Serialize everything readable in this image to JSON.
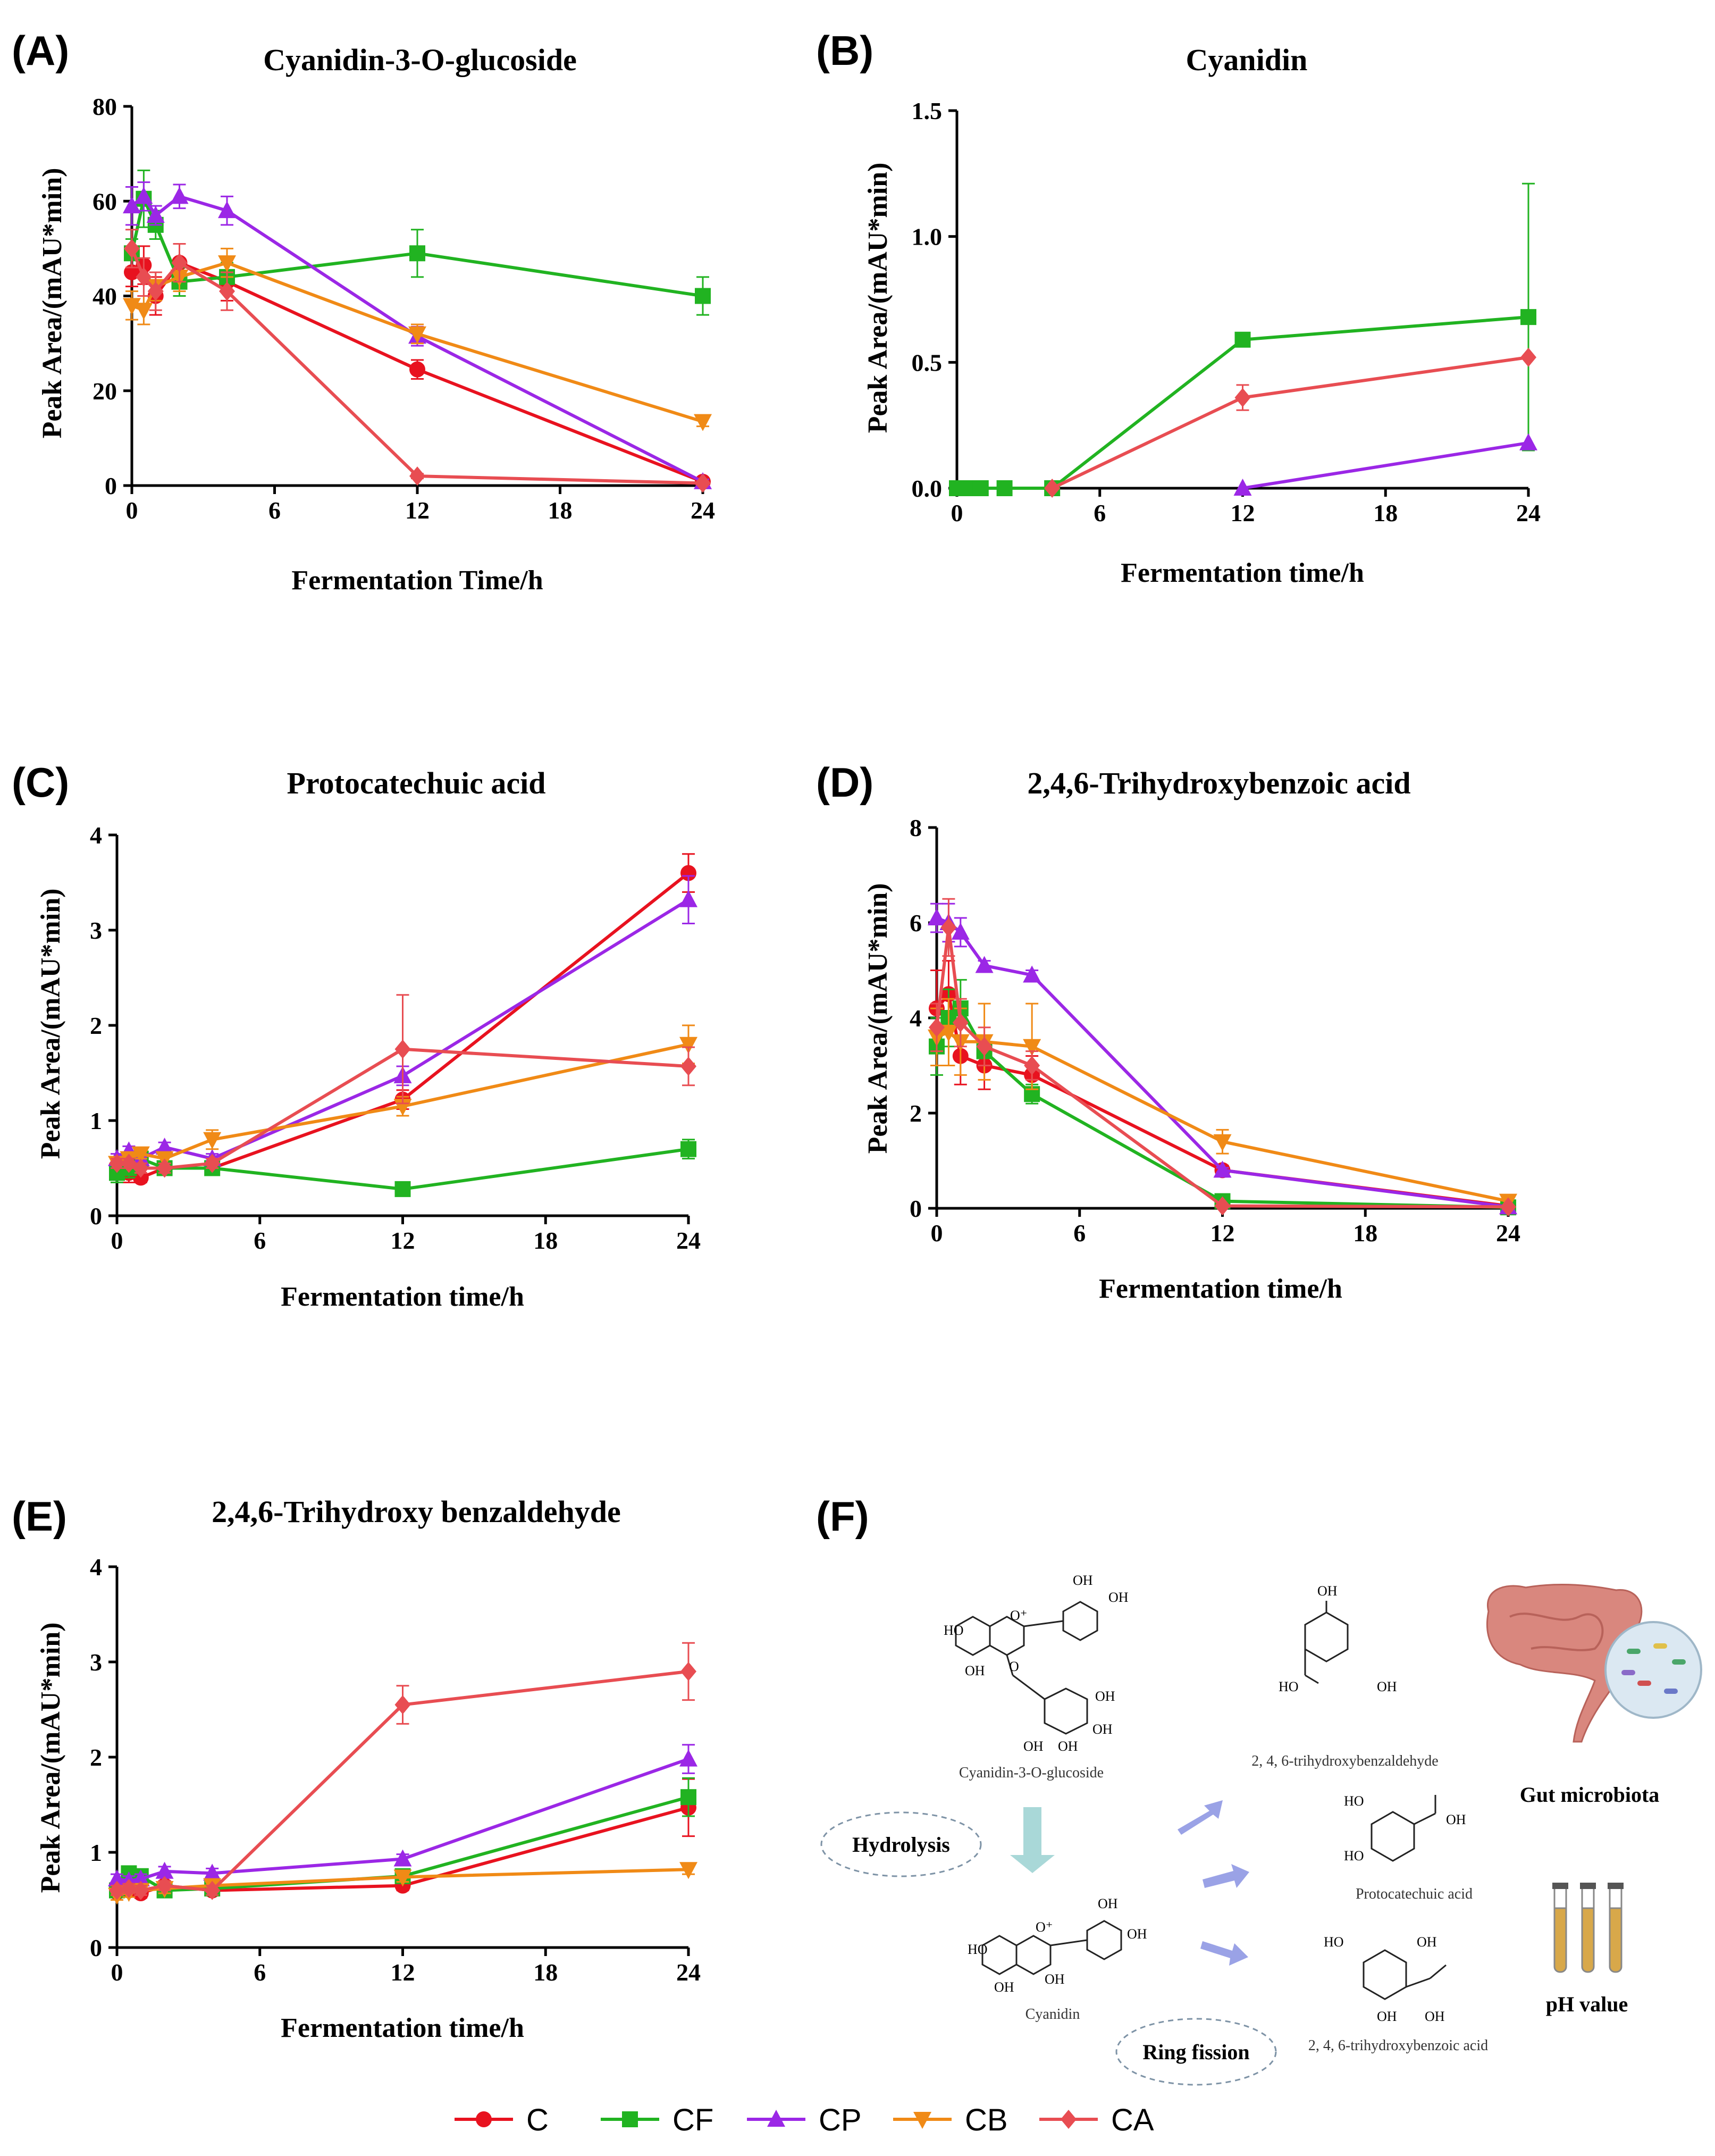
{
  "colors": {
    "C": "#e8121f",
    "CF": "#21b321",
    "CP": "#9b27e6",
    "CB": "#f08a16",
    "CA": "#e84d52"
  },
  "legend": [
    {
      "key": "C",
      "label": "C",
      "marker": "circle"
    },
    {
      "key": "CF",
      "label": "CF",
      "marker": "square"
    },
    {
      "key": "CP",
      "label": "CP",
      "marker": "triangle-up"
    },
    {
      "key": "CB",
      "label": "CB",
      "marker": "triangle-down"
    },
    {
      "key": "CA",
      "label": "CA",
      "marker": "diamond"
    }
  ],
  "chart_data": [
    {
      "panel": "(A)",
      "type": "line",
      "title": "Cyanidin-3-O-glucoside",
      "xlabel": "Fermentation Time/h",
      "ylabel": "Peak Area/(mAU*min)",
      "xlim": [
        0,
        24
      ],
      "ylim": [
        0,
        80
      ],
      "xticks": [
        {
          "v": 0,
          "label": "0"
        },
        {
          "v": 6,
          "label": "6"
        },
        {
          "v": 12,
          "label": "12"
        },
        {
          "v": 18,
          "label": "18"
        },
        {
          "v": 24,
          "label": "24"
        }
      ],
      "yticks": [
        {
          "v": 0,
          "label": "0"
        },
        {
          "v": 20,
          "label": "20"
        },
        {
          "v": 40,
          "label": "40"
        },
        {
          "v": 60,
          "label": "60"
        },
        {
          "v": 80,
          "label": "80"
        }
      ],
      "series": [
        {
          "name": "C",
          "x": [
            0,
            0.5,
            1,
            2,
            4,
            12,
            24
          ],
          "y": [
            45,
            46.5,
            40,
            47,
            43,
            24.5,
            0.8
          ],
          "err": [
            3,
            4,
            4,
            4,
            4,
            2,
            0.5
          ]
        },
        {
          "name": "CF",
          "x": [
            0,
            0.5,
            1,
            2,
            4,
            12,
            24
          ],
          "y": [
            49,
            60.5,
            55,
            43,
            44,
            49,
            40
          ],
          "err": [
            3,
            6,
            3,
            3,
            3,
            5,
            4
          ]
        },
        {
          "name": "CP",
          "x": [
            0,
            0.5,
            1,
            2,
            4,
            12,
            24
          ],
          "y": [
            59,
            61,
            57,
            61,
            58,
            31.5,
            0.8
          ],
          "err": [
            4,
            3,
            2,
            2.5,
            3,
            2,
            0.5
          ]
        },
        {
          "name": "CB",
          "x": [
            0,
            0.5,
            1,
            2,
            4,
            12,
            24
          ],
          "y": [
            38,
            37,
            42,
            44,
            47,
            32,
            13.5
          ],
          "err": [
            3,
            3,
            3,
            3,
            3,
            2,
            1
          ]
        },
        {
          "name": "CA",
          "x": [
            0,
            0.5,
            1,
            2,
            4,
            12,
            24
          ],
          "y": [
            50,
            44,
            41,
            47,
            41,
            2,
            0.5
          ],
          "err": [
            4,
            4,
            4,
            4,
            4,
            0.5,
            0.3
          ]
        }
      ]
    },
    {
      "panel": "(B)",
      "type": "line",
      "title": "Cyanidin",
      "xlabel": "Fermentation time/h",
      "ylabel": "Peak Area/(mAU*min)",
      "xlim": [
        0,
        24
      ],
      "ylim": [
        0,
        1.5
      ],
      "xticks": [
        {
          "v": 0,
          "label": "0"
        },
        {
          "v": 6,
          "label": "6"
        },
        {
          "v": 12,
          "label": "12"
        },
        {
          "v": 18,
          "label": "18"
        },
        {
          "v": 24,
          "label": "24"
        }
      ],
      "yticks": [
        {
          "v": 0,
          "label": "0.0"
        },
        {
          "v": 0.5,
          "label": "0.5"
        },
        {
          "v": 1.0,
          "label": "1.0"
        },
        {
          "v": 1.5,
          "label": "1.5"
        }
      ],
      "series": [
        {
          "name": "CF",
          "x": [
            0,
            0.5,
            1,
            2,
            4,
            12,
            24
          ],
          "y": [
            0,
            0,
            0,
            0,
            0,
            0.59,
            0.68
          ],
          "err": [
            0,
            0,
            0,
            0,
            0,
            0.02,
            0.53
          ]
        },
        {
          "name": "CP",
          "x": [
            12,
            24
          ],
          "y": [
            0,
            0.18
          ],
          "err": [
            0,
            0
          ]
        },
        {
          "name": "CA",
          "x": [
            4,
            12,
            24
          ],
          "y": [
            0,
            0.36,
            0.52
          ],
          "err": [
            0,
            0.05,
            0
          ]
        }
      ]
    },
    {
      "panel": "(C)",
      "type": "line",
      "title": "Protocatechuic acid",
      "xlabel": "Fermentation time/h",
      "ylabel": "Peak Area/(mAU*min)",
      "xlim": [
        0,
        24
      ],
      "ylim": [
        0,
        4
      ],
      "xticks": [
        {
          "v": 0,
          "label": "0"
        },
        {
          "v": 6,
          "label": "6"
        },
        {
          "v": 12,
          "label": "12"
        },
        {
          "v": 18,
          "label": "18"
        },
        {
          "v": 24,
          "label": "24"
        }
      ],
      "yticks": [
        {
          "v": 0,
          "label": "0"
        },
        {
          "v": 1,
          "label": "1"
        },
        {
          "v": 2,
          "label": "2"
        },
        {
          "v": 3,
          "label": "3"
        },
        {
          "v": 4,
          "label": "4"
        }
      ],
      "series": [
        {
          "name": "C",
          "x": [
            0,
            0.5,
            1,
            2,
            4,
            12,
            24
          ],
          "y": [
            0.5,
            0.45,
            0.4,
            0.5,
            0.5,
            1.22,
            3.6
          ],
          "err": [
            0.1,
            0.1,
            0.05,
            0.05,
            0.05,
            0.1,
            0.2
          ]
        },
        {
          "name": "CF",
          "x": [
            0,
            0.5,
            1,
            2,
            4,
            12,
            24
          ],
          "y": [
            0.45,
            0.5,
            0.6,
            0.5,
            0.5,
            0.28,
            0.7
          ],
          "err": [
            0.1,
            0.1,
            0.1,
            0.05,
            0.05,
            0.03,
            0.1
          ]
        },
        {
          "name": "CP",
          "x": [
            0,
            0.5,
            1,
            2,
            4,
            12,
            24
          ],
          "y": [
            0.6,
            0.68,
            0.6,
            0.72,
            0.6,
            1.47,
            3.32
          ],
          "err": [
            0.05,
            0.05,
            0.05,
            0.05,
            0.05,
            0.1,
            0.25
          ]
        },
        {
          "name": "CB",
          "x": [
            0,
            0.5,
            1,
            2,
            4,
            12,
            24
          ],
          "y": [
            0.55,
            0.6,
            0.65,
            0.6,
            0.8,
            1.15,
            1.8
          ],
          "err": [
            0.05,
            0.05,
            0.05,
            0.05,
            0.1,
            0.1,
            0.2
          ]
        },
        {
          "name": "CA",
          "x": [
            0,
            0.5,
            1,
            2,
            4,
            12,
            24
          ],
          "y": [
            0.55,
            0.55,
            0.5,
            0.5,
            0.55,
            1.75,
            1.57
          ],
          "err": [
            0.05,
            0.05,
            0.05,
            0.05,
            0.05,
            0.57,
            0.2
          ]
        }
      ]
    },
    {
      "panel": "(D)",
      "type": "line",
      "title": "2,4,6-Trihydroxybenzoic acid",
      "xlabel": "Fermentation time/h",
      "ylabel": "Peak Area/(mAU*min)",
      "xlim": [
        0,
        24
      ],
      "ylim": [
        0,
        8
      ],
      "xticks": [
        {
          "v": 0,
          "label": "0"
        },
        {
          "v": 6,
          "label": "6"
        },
        {
          "v": 12,
          "label": "12"
        },
        {
          "v": 18,
          "label": "18"
        },
        {
          "v": 24,
          "label": "24"
        }
      ],
      "yticks": [
        {
          "v": 0,
          "label": "0"
        },
        {
          "v": 2,
          "label": "2"
        },
        {
          "v": 4,
          "label": "4"
        },
        {
          "v": 6,
          "label": "6"
        },
        {
          "v": 8,
          "label": "8"
        }
      ],
      "series": [
        {
          "name": "C",
          "x": [
            0,
            0.5,
            1,
            2,
            4,
            12,
            24
          ],
          "y": [
            4.2,
            4.5,
            3.2,
            3.0,
            2.8,
            0.8,
            0.05
          ],
          "err": [
            0.8,
            0.7,
            0.6,
            0.5,
            0.4,
            0.1,
            0.05
          ]
        },
        {
          "name": "CF",
          "x": [
            0,
            0.5,
            1,
            2,
            4,
            12,
            24
          ],
          "y": [
            3.4,
            4.0,
            4.2,
            3.3,
            2.4,
            0.15,
            0.02
          ],
          "err": [
            0.6,
            0.6,
            0.6,
            0.3,
            0.2,
            0.05,
            0.02
          ]
        },
        {
          "name": "CP",
          "x": [
            0,
            0.5,
            1,
            2,
            4,
            12,
            24
          ],
          "y": [
            6.1,
            6.0,
            5.8,
            5.1,
            4.9,
            0.8,
            0.03
          ],
          "err": [
            0.3,
            0.4,
            0.3,
            0.1,
            0.1,
            0.05,
            0.02
          ]
        },
        {
          "name": "CB",
          "x": [
            0,
            0.5,
            1,
            2,
            4,
            12,
            24
          ],
          "y": [
            3.6,
            3.7,
            3.5,
            3.5,
            3.4,
            1.4,
            0.15
          ],
          "err": [
            0.6,
            0.7,
            0.7,
            0.8,
            0.9,
            0.25,
            0.1
          ]
        },
        {
          "name": "CA",
          "x": [
            0,
            0.5,
            1,
            2,
            4,
            12,
            24
          ],
          "y": [
            3.8,
            5.9,
            3.9,
            3.4,
            3.0,
            0.05,
            0.03
          ],
          "err": [
            0.5,
            0.6,
            0.5,
            0.4,
            0.3,
            0.03,
            0.02
          ]
        }
      ]
    },
    {
      "panel": "(E)",
      "type": "line",
      "title": "2,4,6-Trihydroxy benzaldehyde",
      "xlabel": "Fermentation time/h",
      "ylabel": "Peak Area/(mAU*min)",
      "xlim": [
        0,
        24
      ],
      "ylim": [
        0,
        4
      ],
      "xticks": [
        {
          "v": 0,
          "label": "0"
        },
        {
          "v": 6,
          "label": "6"
        },
        {
          "v": 12,
          "label": "12"
        },
        {
          "v": 18,
          "label": "18"
        },
        {
          "v": 24,
          "label": "24"
        }
      ],
      "yticks": [
        {
          "v": 0,
          "label": "0"
        },
        {
          "v": 1,
          "label": "1"
        },
        {
          "v": 2,
          "label": "2"
        },
        {
          "v": 3,
          "label": "3"
        },
        {
          "v": 4,
          "label": "4"
        }
      ],
      "series": [
        {
          "name": "C",
          "x": [
            0,
            0.5,
            1,
            2,
            4,
            12,
            24
          ],
          "y": [
            0.58,
            0.6,
            0.57,
            0.65,
            0.6,
            0.65,
            1.47
          ],
          "err": [
            0.05,
            0.05,
            0.05,
            0.05,
            0.05,
            0.05,
            0.3
          ]
        },
        {
          "name": "CF",
          "x": [
            0,
            0.5,
            1,
            2,
            4,
            12,
            24
          ],
          "y": [
            0.6,
            0.78,
            0.75,
            0.6,
            0.62,
            0.75,
            1.58
          ],
          "err": [
            0.05,
            0.05,
            0.05,
            0.05,
            0.05,
            0.05,
            0.2
          ]
        },
        {
          "name": "CP",
          "x": [
            0,
            0.5,
            1,
            2,
            4,
            12,
            24
          ],
          "y": [
            0.72,
            0.7,
            0.72,
            0.8,
            0.78,
            0.93,
            1.98
          ],
          "err": [
            0.05,
            0.05,
            0.05,
            0.05,
            0.05,
            0.05,
            0.15
          ]
        },
        {
          "name": "CB",
          "x": [
            0,
            0.5,
            1,
            2,
            4,
            12,
            24
          ],
          "y": [
            0.55,
            0.58,
            0.6,
            0.62,
            0.65,
            0.74,
            0.82
          ],
          "err": [
            0.05,
            0.05,
            0.05,
            0.05,
            0.05,
            0.05,
            0.05
          ]
        },
        {
          "name": "CA",
          "x": [
            0,
            0.5,
            1,
            2,
            4,
            12,
            24
          ],
          "y": [
            0.6,
            0.62,
            0.6,
            0.65,
            0.6,
            2.55,
            2.9
          ],
          "err": [
            0.05,
            0.05,
            0.05,
            0.05,
            0.05,
            0.2,
            0.3
          ]
        }
      ]
    }
  ],
  "scheme": {
    "panel": "(F)",
    "compounds": {
      "c3g": "Cyanidin-3-O-glucoside",
      "cyanidin": "Cyanidin",
      "tbald": "2, 4, 6-trihydroxybenzaldehyde",
      "pca": "Protocatechuic acid",
      "tba": "2, 4, 6-trihydroxybenzoic acid"
    },
    "hydrolysis": "Hydrolysis",
    "ring_fission": "Ring fission",
    "gut": "Gut microbiota",
    "ph": "pH value",
    "atoms": {
      "oh": "OH",
      "ho": "HO",
      "o": "O",
      "o_plus": "O⁺",
      "oh_red": "OH"
    }
  }
}
